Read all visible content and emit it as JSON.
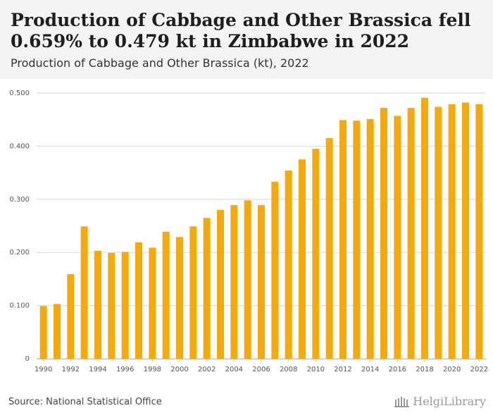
{
  "header": {
    "title": "Production of Cabbage and Other Brassica fell 0.659% to 0.479 kt in Zimbabwe in 2022",
    "subtitle": "Production of Cabbage and Other Brassica (kt), 2022"
  },
  "footer": {
    "source": "Source: National Statistical Office",
    "logo_text": "HelgiLibrary"
  },
  "colors": {
    "bar": "#f5a90a",
    "grid": "#d9d9d9",
    "header_bg": "#f4f4f4"
  },
  "chart_data": {
    "type": "bar",
    "title": "Production of Cabbage and Other Brassica fell 0.659% to 0.479 kt in Zimbabwe in 2022",
    "subtitle": "Production of Cabbage and Other Brassica (kt), 2022",
    "categories": [
      "1990",
      "1991",
      "1992",
      "1993",
      "1994",
      "1995",
      "1996",
      "1997",
      "1998",
      "1999",
      "2000",
      "2001",
      "2002",
      "2003",
      "2004",
      "2005",
      "2006",
      "2007",
      "2008",
      "2009",
      "2010",
      "2011",
      "2012",
      "2013",
      "2014",
      "2015",
      "2016",
      "2017",
      "2018",
      "2019",
      "2020",
      "2021",
      "2022"
    ],
    "values": [
      0.099,
      0.103,
      0.159,
      0.249,
      0.203,
      0.199,
      0.201,
      0.219,
      0.209,
      0.239,
      0.229,
      0.249,
      0.265,
      0.28,
      0.289,
      0.298,
      0.289,
      0.333,
      0.354,
      0.375,
      0.395,
      0.415,
      0.449,
      0.448,
      0.451,
      0.472,
      0.457,
      0.472,
      0.491,
      0.474,
      0.479,
      0.482,
      0.479
    ],
    "x_tick_labels": [
      "1990",
      "1992",
      "1994",
      "1996",
      "1998",
      "2000",
      "2002",
      "2004",
      "2006",
      "2008",
      "2010",
      "2012",
      "2014",
      "2016",
      "2018",
      "2020",
      "2022"
    ],
    "y_ticks": [
      0,
      0.1,
      0.2,
      0.3,
      0.4,
      0.5
    ],
    "y_tick_labels": [
      "0",
      "0.100",
      "0.200",
      "0.300",
      "0.400",
      "0.500"
    ],
    "ylim": [
      0,
      0.5
    ],
    "xlabel": "",
    "ylabel": "",
    "grid": true,
    "legend": "none"
  }
}
